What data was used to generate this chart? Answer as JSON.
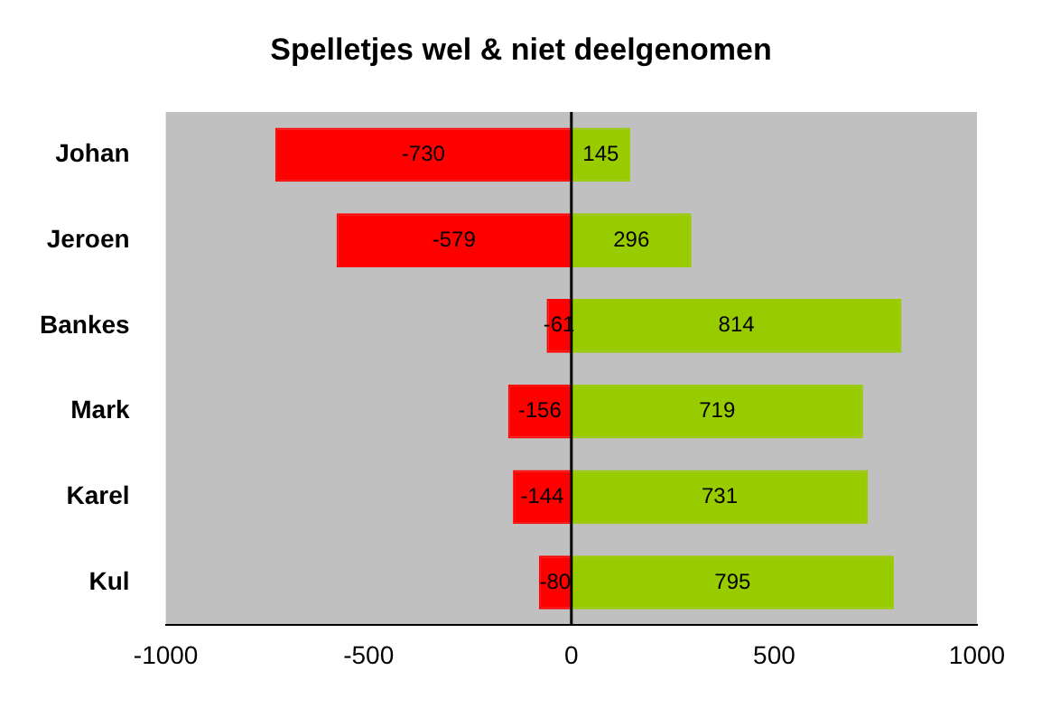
{
  "chart_data": {
    "type": "bar",
    "title": "Spelletjes wel & niet deelgenomen",
    "orientation": "horizontal",
    "stacked": true,
    "categories": [
      "Johan",
      "Jeroen",
      "Bankes",
      "Mark",
      "Karel",
      "Kul"
    ],
    "series": [
      {
        "color": "#ff0000",
        "values": [
          -730,
          -579,
          -61,
          -156,
          -144,
          -80
        ]
      },
      {
        "color": "#99cc00",
        "values": [
          145,
          296,
          814,
          719,
          731,
          795
        ]
      }
    ],
    "xlim": [
      -1000,
      1000
    ],
    "xticks": [
      -1000,
      -500,
      0,
      500,
      1000
    ],
    "grid": false,
    "legend": false,
    "data_labels": true,
    "ref_lines": [
      {
        "axis": "x",
        "value": 0
      }
    ]
  }
}
